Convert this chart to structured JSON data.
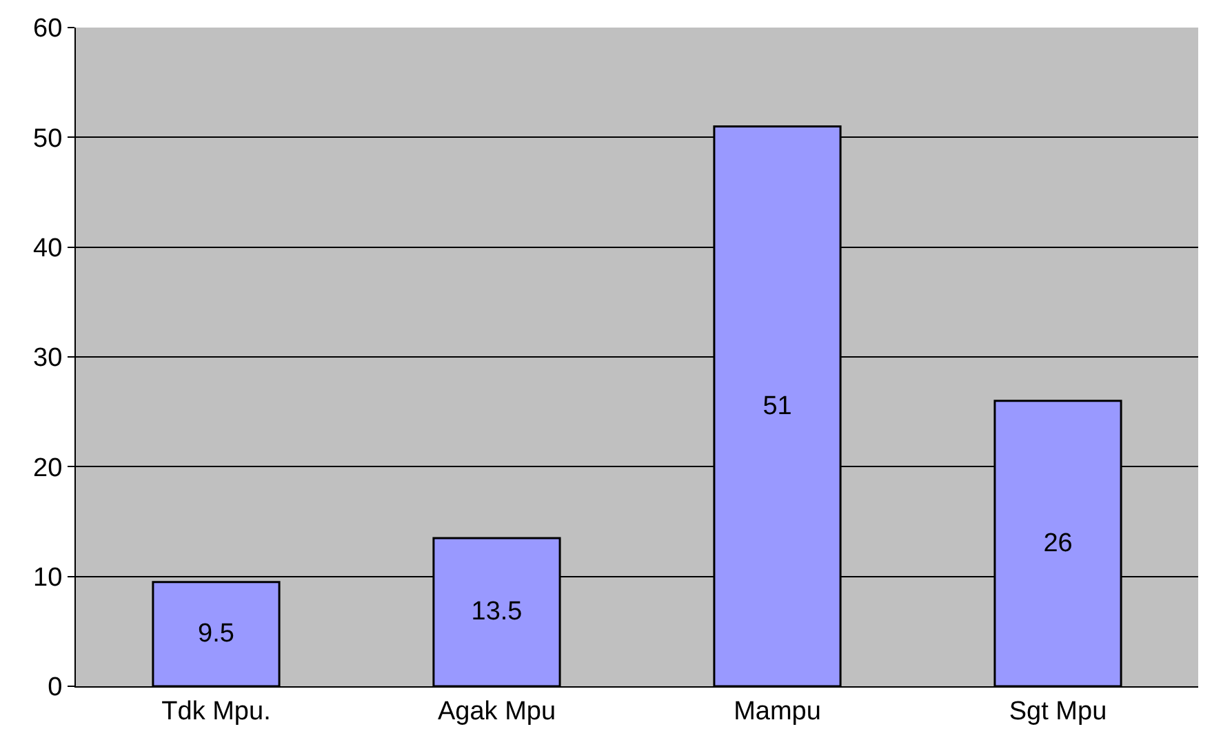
{
  "chart_data": {
    "type": "bar",
    "categories": [
      "Tdk Mpu.",
      "Agak Mpu",
      "Mampu",
      "Sgt Mpu"
    ],
    "values": [
      9.5,
      13.5,
      51,
      26
    ],
    "color": "#9999ff",
    "ylim": [
      0,
      60
    ],
    "yticks": [
      0,
      10,
      20,
      30,
      40,
      50,
      60
    ],
    "grid": "y",
    "data_labels": true
  }
}
